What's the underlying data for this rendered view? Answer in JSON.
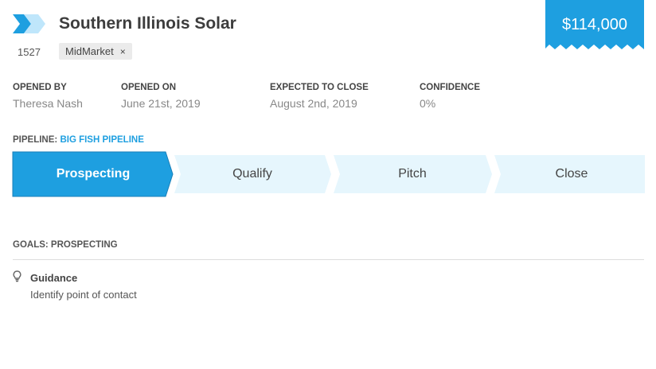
{
  "header": {
    "title": "Southern Illinois Solar",
    "id": "1527",
    "tag": "MidMarket",
    "tag_remove": "×",
    "amount": "$114,000",
    "logo_icon": "chevron-logo-icon"
  },
  "meta": [
    {
      "label": "OPENED BY",
      "value": "Theresa Nash"
    },
    {
      "label": "OPENED ON",
      "value": "June 21st, 2019"
    },
    {
      "label": "EXPECTED TO CLOSE",
      "value": "August 2nd, 2019"
    },
    {
      "label": "CONFIDENCE",
      "value": "0%"
    }
  ],
  "pipeline": {
    "label": "PIPELINE:",
    "name": "BIG FISH PIPELINE",
    "stages": [
      "Prospecting",
      "Qualify",
      "Pitch",
      "Close"
    ],
    "active_stage": "Prospecting"
  },
  "goals": {
    "heading": "GOALS: PROSPECTING",
    "items": [
      {
        "icon": "lightbulb-icon",
        "title": "Guidance",
        "text": "Identify point of contact"
      }
    ]
  },
  "colors": {
    "accent": "#1e9fe0",
    "stage_inactive": "#e6f6fd",
    "logo_light": "#bfe6fb"
  }
}
